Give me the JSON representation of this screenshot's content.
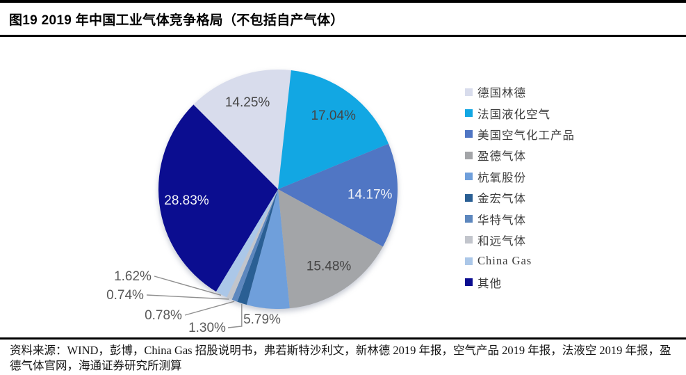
{
  "header": {
    "title": "图19 2019 年中国工业气体竞争格局（不包括自产气体）"
  },
  "footer": {
    "source": "资料来源：WIND，彭博，China Gas 招股说明书，弗若斯特沙利文，新林德 2019 年报，空气产品 2019 年报，法液空 2019 年报，盈德气体官网，海通证券研究所测算"
  },
  "chart_data": {
    "type": "pie",
    "title": "图19 2019 年中国工业气体竞争格局（不包括自产气体）",
    "legend_position": "right",
    "start_angle_deg_from_12_clockwise": -45,
    "total": 100,
    "series": [
      {
        "name": "德国林德",
        "value": 14.25,
        "label": "14.25%",
        "color": "#D8DCEC"
      },
      {
        "name": "法国液化空气",
        "value": 17.04,
        "label": "17.04%",
        "color": "#12A7E3"
      },
      {
        "name": "美国空气化工产品",
        "value": 14.17,
        "label": "14.17%",
        "color": "#5076C4"
      },
      {
        "name": "盈德气体",
        "value": 15.48,
        "label": "15.48%",
        "color": "#A3A5A8"
      },
      {
        "name": "杭氧股份",
        "value": 5.79,
        "label": "5.79%",
        "color": "#6F9FDB"
      },
      {
        "name": "金宏气体",
        "value": 1.3,
        "label": "1.30%",
        "color": "#2A5F94"
      },
      {
        "name": "华特气体",
        "value": 0.78,
        "label": "0.78%",
        "color": "#5D87BE"
      },
      {
        "name": "和远气体",
        "value": 0.74,
        "label": "0.74%",
        "color": "#C2C5CC"
      },
      {
        "name": "China Gas",
        "value": 1.62,
        "label": "1.62%",
        "color": "#ABC7E8"
      },
      {
        "name": "其他",
        "value": 28.83,
        "label": "28.83%",
        "color": "#0B0D90"
      }
    ]
  }
}
